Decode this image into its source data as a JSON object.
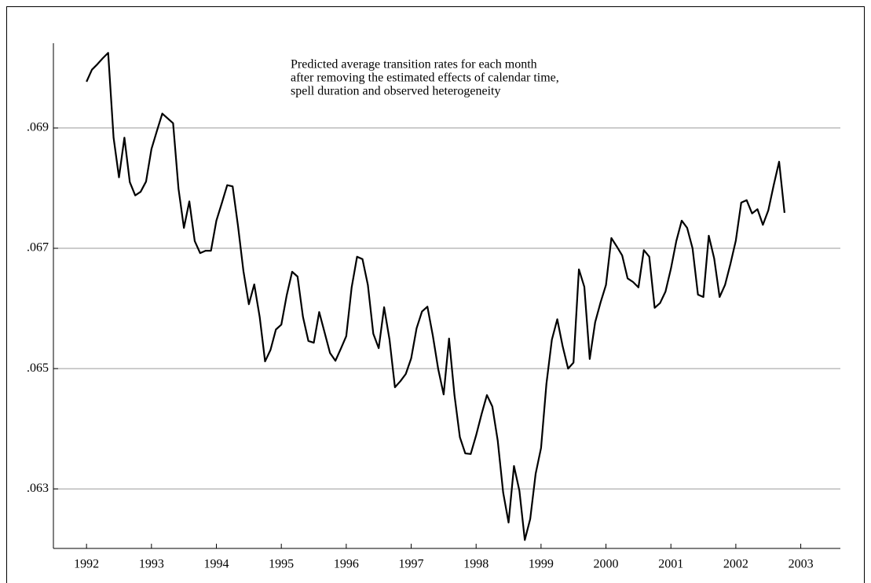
{
  "chart_data": {
    "type": "line",
    "annotation": [
      "Predicted average transition rates for each month",
      "after removing the estimated effects of calendar time,",
      "spell duration and observed heterogeneity"
    ],
    "color": "#000000",
    "x": [
      1992,
      1992.0833,
      1992.1667,
      1992.25,
      1992.3333,
      1992.4167,
      1992.5,
      1992.5833,
      1992.6667,
      1992.75,
      1992.8333,
      1992.9167,
      1993,
      1993.0833,
      1993.1667,
      1993.25,
      1993.3333,
      1993.4167,
      1993.5,
      1993.5833,
      1993.6667,
      1993.75,
      1993.8333,
      1993.9167,
      1994,
      1994.0833,
      1994.1667,
      1994.25,
      1994.3333,
      1994.4167,
      1994.5,
      1994.5833,
      1994.6667,
      1994.75,
      1994.8333,
      1994.9167,
      1995,
      1995.0833,
      1995.1667,
      1995.25,
      1995.3333,
      1995.4167,
      1995.5,
      1995.5833,
      1995.6667,
      1995.75,
      1995.8333,
      1995.9167,
      1996,
      1996.0833,
      1996.1667,
      1996.25,
      1996.3333,
      1996.4167,
      1996.5,
      1996.5833,
      1996.6667,
      1996.75,
      1996.8333,
      1996.9167,
      1997,
      1997.0833,
      1997.1667,
      1997.25,
      1997.3333,
      1997.4167,
      1997.5,
      1997.5833,
      1997.6667,
      1997.75,
      1997.8333,
      1997.9167,
      1998,
      1998.0833,
      1998.1667,
      1998.25,
      1998.3333,
      1998.4167,
      1998.5,
      1998.5833,
      1998.6667,
      1998.75,
      1998.8333,
      1998.9167,
      1999,
      1999.0833,
      1999.1667,
      1999.25,
      1999.3333,
      1999.4167,
      1999.5,
      1999.5833,
      1999.6667,
      1999.75,
      1999.8333,
      1999.9167,
      2000,
      2000.0833,
      2000.1667,
      2000.25,
      2000.3333,
      2000.4167,
      2000.5,
      2000.5833,
      2000.6667,
      2000.75,
      2000.8333,
      2000.9167,
      2001,
      2001.0833,
      2001.1667,
      2001.25,
      2001.3333,
      2001.4167,
      2001.5,
      2001.5833,
      2001.6667,
      2001.75,
      2001.8333,
      2001.9167,
      2002,
      2002.0833,
      2002.1667,
      2002.25,
      2002.3333,
      2002.4167,
      2002.5,
      2002.5833,
      2002.6667,
      2002.75
    ],
    "values": [
      0.06977,
      0.06997,
      0.07006,
      0.07016,
      0.07025,
      0.06884,
      0.06818,
      0.06884,
      0.0681,
      0.06788,
      0.06794,
      0.06811,
      0.06865,
      0.06895,
      0.06924,
      0.06916,
      0.06908,
      0.06799,
      0.06734,
      0.06778,
      0.06712,
      0.06692,
      0.06696,
      0.06696,
      0.06746,
      0.06775,
      0.06805,
      0.06803,
      0.06737,
      0.06662,
      0.06607,
      0.0664,
      0.06586,
      0.06512,
      0.06531,
      0.06565,
      0.06573,
      0.06622,
      0.06661,
      0.06653,
      0.06586,
      0.06546,
      0.06543,
      0.06594,
      0.0656,
      0.06526,
      0.06513,
      0.06533,
      0.06554,
      0.06635,
      0.06686,
      0.06682,
      0.06639,
      0.06558,
      0.06534,
      0.06602,
      0.06548,
      0.06469,
      0.06479,
      0.06491,
      0.06517,
      0.06567,
      0.06595,
      0.06603,
      0.06555,
      0.06499,
      0.06457,
      0.0655,
      0.06456,
      0.06386,
      0.06359,
      0.06358,
      0.06389,
      0.06424,
      0.06456,
      0.06437,
      0.0638,
      0.06294,
      0.06244,
      0.06338,
      0.06297,
      0.06215,
      0.0625,
      0.06325,
      0.06368,
      0.06475,
      0.06548,
      0.06582,
      0.06537,
      0.065,
      0.0651,
      0.06665,
      0.06636,
      0.06516,
      0.06577,
      0.0661,
      0.06639,
      0.06717,
      0.06703,
      0.06688,
      0.0665,
      0.06644,
      0.06635,
      0.06697,
      0.06686,
      0.06601,
      0.06609,
      0.06628,
      0.06666,
      0.06712,
      0.06746,
      0.06734,
      0.067,
      0.06623,
      0.06619,
      0.06721,
      0.06683,
      0.06619,
      0.06639,
      0.06674,
      0.06713,
      0.06776,
      0.0678,
      0.06758,
      0.06765,
      0.06739,
      0.06763,
      0.06805,
      0.06844,
      0.06759
    ],
    "xlim": [
      1991.49,
      2003.61
    ],
    "xticks": [
      1992,
      1993,
      1994,
      1995,
      1996,
      1997,
      1998,
      1999,
      2000,
      2001,
      2002,
      2003
    ],
    "ylim": [
      0.06201,
      0.07041
    ],
    "yticks": [
      {
        "value": 0.063,
        "label": ".063"
      },
      {
        "value": 0.065,
        "label": ".065"
      },
      {
        "value": 0.067,
        "label": ".067"
      },
      {
        "value": 0.069,
        "label": ".069"
      }
    ],
    "grid": true
  }
}
